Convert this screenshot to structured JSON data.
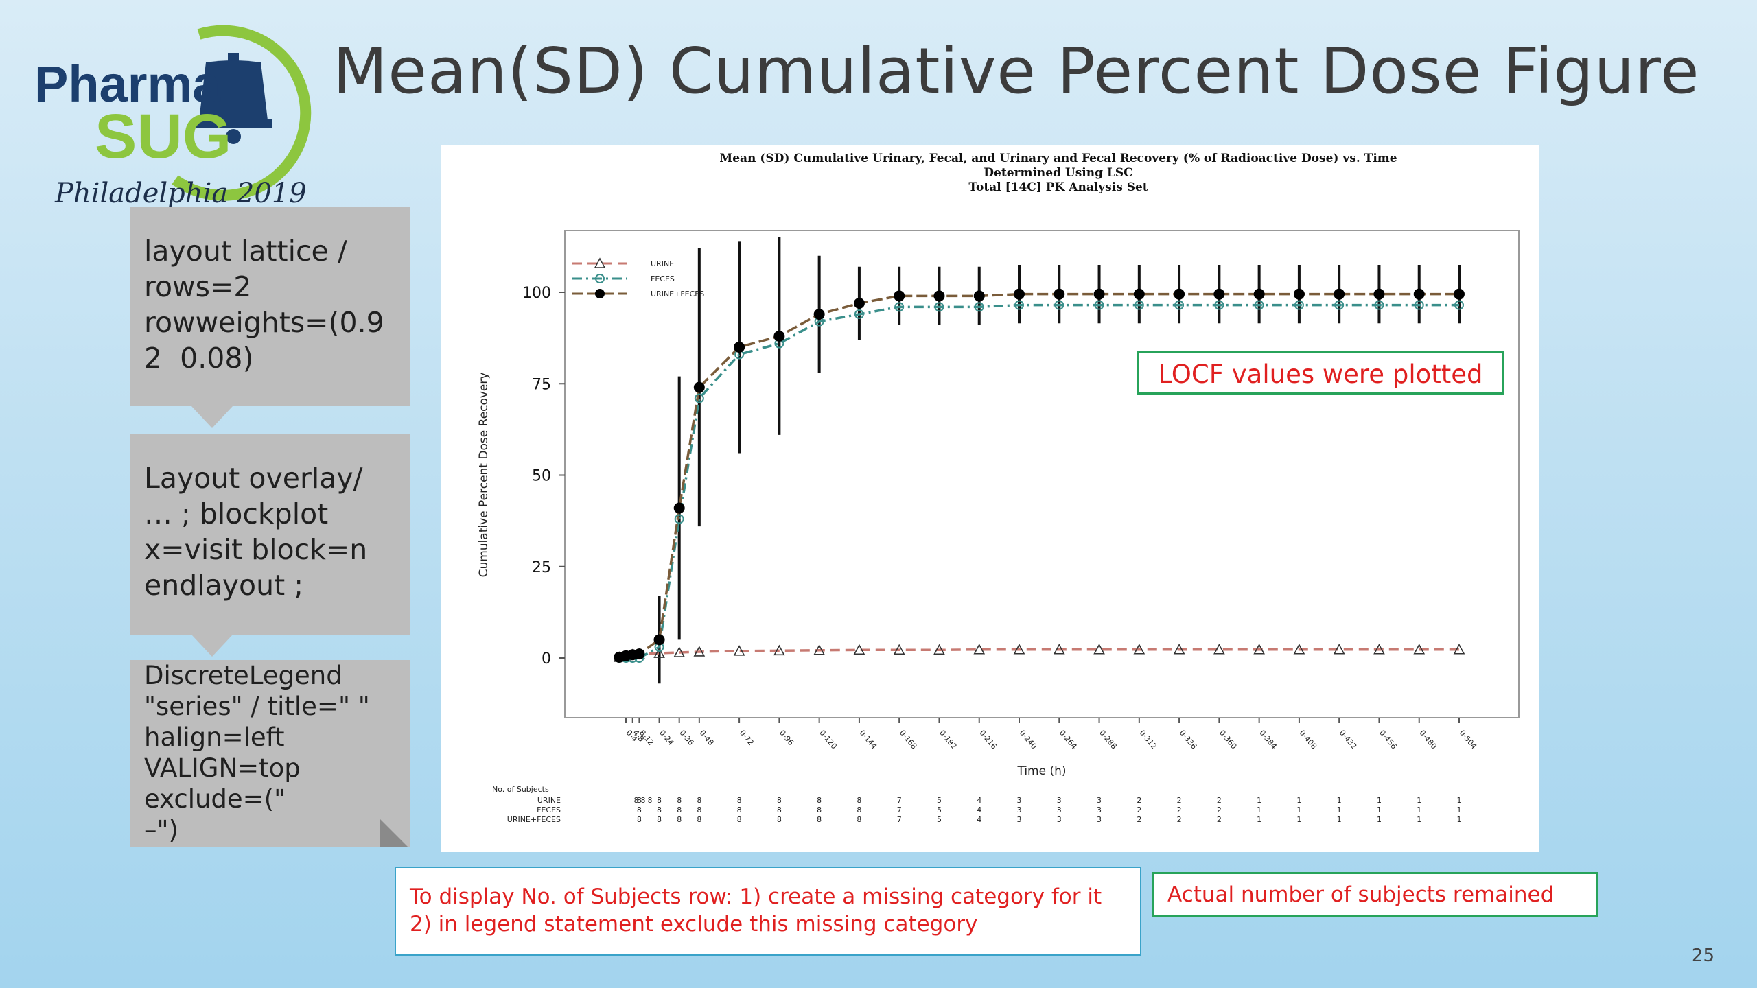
{
  "slide": {
    "title": "Mean(SD) Cumulative Percent Dose Figure",
    "page_number": "25",
    "logo": {
      "line1": "Pharma",
      "line2": "SUG",
      "line3": "Philadelphia 2019"
    }
  },
  "callouts": [
    {
      "text": "layout lattice /\nrows=2\nrowweights=(0.9\n2  0.08)"
    },
    {
      "text": "Layout overlay/\n… ; blockplot\nx=visit block=n\nendlayout ;"
    },
    {
      "text": "DiscreteLegend\n\"series\" / title=\" \"\nhalign=left\nVALIGN=top\nexclude=(\"\n–\")"
    }
  ],
  "notes": {
    "locf": "LOCF values were plotted",
    "subjects_line1": "To display  No. of Subjects row: 1) create a missing category for it",
    "subjects_line2": "2) in legend statement exclude this missing category",
    "actual": "Actual number of subjects remained"
  },
  "colors": {
    "urine": "#c77a72",
    "feces": "#3a8f8b",
    "urine_feces": "#7a5c3a",
    "note_border": "#27a35a",
    "note_text": "#e02020"
  },
  "chart_data": {
    "type": "line",
    "title_lines": [
      "Mean (SD) Cumulative Urinary, Fecal, and Urinary and Fecal Recovery (% of Radioactive Dose) vs. Time",
      "Determined Using LSC",
      "Total [14C] PK Analysis Set"
    ],
    "ylabel": "Cumulative Percent Dose Recovery",
    "xlabel": "Time (h)",
    "ylim": [
      -12,
      116
    ],
    "yticks": [
      0,
      25,
      50,
      75,
      100
    ],
    "x": [
      0,
      4,
      8,
      12,
      24,
      36,
      48,
      72,
      96,
      120,
      144,
      168,
      192,
      216,
      240,
      264,
      288,
      312,
      336,
      360,
      384,
      408,
      432,
      456,
      480,
      504
    ],
    "x_tick_labels": [
      "0-4",
      "4-8",
      "8-12",
      "0-24",
      "0-36",
      "0-48",
      "0-72",
      "0-96",
      "0-120",
      "0-144",
      "0-168",
      "0-192",
      "0-216",
      "0-240",
      "0-264",
      "0-288",
      "0-312",
      "0-336",
      "0-360",
      "0-384",
      "0-408",
      "0-432",
      "0-456",
      "0-480",
      "0-504"
    ],
    "x_tick_values": [
      4,
      8,
      12,
      24,
      36,
      48,
      72,
      96,
      120,
      144,
      168,
      192,
      216,
      240,
      264,
      288,
      312,
      336,
      360,
      384,
      408,
      432,
      456,
      480,
      504
    ],
    "legend_position": "top-left",
    "series": [
      {
        "name": "URINE",
        "values": [
          0.2,
          0.6,
          0.9,
          1.1,
          1.3,
          1.5,
          1.7,
          1.9,
          2.0,
          2.1,
          2.2,
          2.2,
          2.2,
          2.3,
          2.3,
          2.3,
          2.3,
          2.3,
          2.3,
          2.3,
          2.3,
          2.3,
          2.3,
          2.3,
          2.3,
          2.3
        ]
      },
      {
        "name": "FECES",
        "values": [
          0,
          0,
          0,
          0,
          3,
          38,
          71,
          83,
          86,
          92,
          94,
          96,
          96,
          96,
          96.5,
          96.5,
          96.5,
          96.5,
          96.5,
          96.5,
          96.5,
          96.5,
          96.5,
          96.5,
          96.5,
          96.5
        ]
      },
      {
        "name": "URINE+FECES",
        "values": [
          0.2,
          0.6,
          0.9,
          1.1,
          5,
          41,
          74,
          85,
          88,
          94,
          97,
          99,
          99,
          99,
          99.5,
          99.5,
          99.5,
          99.5,
          99.5,
          99.5,
          99.5,
          99.5,
          99.5,
          99.5,
          99.5,
          99.5
        ],
        "sd": [
          0,
          0,
          0,
          0,
          12,
          36,
          38,
          29,
          27,
          16,
          10,
          8,
          8,
          8,
          8,
          8,
          8,
          8,
          8,
          8,
          8,
          8,
          8,
          8,
          8,
          8
        ]
      }
    ],
    "subjects_table": {
      "header": "No. of Subjects",
      "rows": [
        {
          "label": "URINE",
          "values": [
            "8",
            "8",
            "8",
            "8",
            "8",
            "8",
            "8",
            "8",
            "8",
            "8",
            "8",
            "7",
            "5",
            "4",
            "3",
            "3",
            "3",
            "2",
            "2",
            "2",
            "1",
            "1",
            "1",
            "1",
            "1",
            "1"
          ]
        },
        {
          "label": "FECES",
          "values": [
            "",
            "",
            "",
            "8",
            "8",
            "8",
            "8",
            "8",
            "8",
            "8",
            "8",
            "7",
            "5",
            "4",
            "3",
            "3",
            "3",
            "2",
            "2",
            "2",
            "1",
            "1",
            "1",
            "1",
            "1",
            "1"
          ]
        },
        {
          "label": "URINE+FECES",
          "values": [
            "",
            "",
            "",
            "8",
            "8",
            "8",
            "8",
            "8",
            "8",
            "8",
            "8",
            "7",
            "5",
            "4",
            "3",
            "3",
            "3",
            "2",
            "2",
            "2",
            "1",
            "1",
            "1",
            "1",
            "1",
            "1"
          ]
        }
      ]
    }
  }
}
